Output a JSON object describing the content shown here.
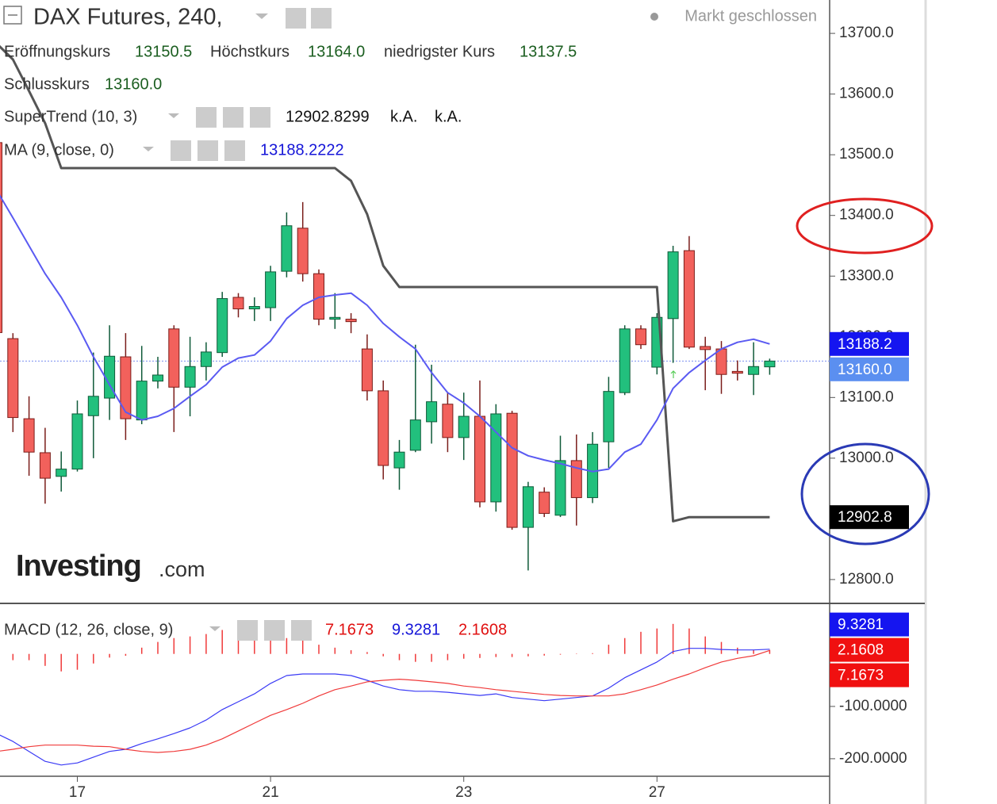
{
  "header": {
    "title": "DAX Futures, 240,",
    "status": "Markt geschlossen",
    "logo": "Investing",
    "logo_suffix": ".com",
    "ohlc": [
      {
        "label": "Eröffnungskurs",
        "value": "13150.5"
      },
      {
        "label": "Höchstkurs",
        "value": "13164.0"
      },
      {
        "label": "niedrigster Kurs",
        "value": "13137.5"
      },
      {
        "label": "Schlusskurs",
        "value": "13160.0"
      }
    ],
    "supertrend": {
      "name": "SuperTrend (10, 3)",
      "values": [
        "12902.8299",
        "k.A.",
        "k.A."
      ]
    },
    "ma": {
      "name": "MA (9, close, 0)",
      "value": "13188.2222"
    },
    "macd": {
      "name": "MACD (12, 26, close, 9)",
      "values": [
        "7.1673",
        "9.3281",
        "2.1608"
      ]
    }
  },
  "chart_data": [
    {
      "type": "candlestick",
      "categories": [
        null,
        null,
        null,
        null,
        null,
        "17",
        null,
        null,
        null,
        null,
        null,
        null,
        null,
        null,
        null,
        null,
        null,
        "21",
        null,
        null,
        null,
        null,
        null,
        null,
        null,
        null,
        null,
        null,
        null,
        "23",
        null,
        null,
        null,
        null,
        null,
        null,
        null,
        null,
        null,
        null,
        null,
        "27",
        null,
        null,
        null,
        null,
        null,
        null,
        null
      ],
      "open": [
        13520,
        13197,
        13065,
        13009,
        12970,
        12982,
        13070,
        13099,
        13167,
        13063,
        13127,
        13213,
        13117,
        13151,
        13174,
        13265,
        13246,
        13248,
        13308,
        13379,
        13304,
        13229,
        13229,
        13180,
        13111,
        12984,
        13013,
        13060,
        13089,
        13034,
        13069,
        12928,
        13074,
        12886,
        12944,
        12906,
        12996,
        12935,
        13027,
        13108,
        13213,
        13150,
        13230,
        13342,
        13184,
        13180,
        13143,
        13138,
        13150.5
      ],
      "high": [
        13600,
        13206,
        13102,
        13050,
        13011,
        13095,
        13174,
        13219,
        13206,
        13185,
        13167,
        13219,
        13200,
        13191,
        13274,
        13272,
        13265,
        13317,
        13405,
        13422,
        13311,
        13272,
        13239,
        13204,
        13128,
        13030,
        13187,
        13154,
        13108,
        13108,
        13128,
        13089,
        13078,
        12961,
        12952,
        13037,
        13039,
        13043,
        13134,
        13219,
        13219,
        13239,
        13350,
        13366,
        13200,
        13193,
        13161,
        13191,
        13164
      ],
      "low": [
        13190,
        13043,
        12971,
        12925,
        12945,
        12978,
        13000,
        13063,
        13030,
        13056,
        13115,
        13043,
        13069,
        13128,
        13167,
        13232,
        13226,
        13226,
        13298,
        13291,
        13219,
        13213,
        13206,
        13095,
        12965,
        12948,
        13010,
        13024,
        13010,
        12997,
        12919,
        12912,
        12882,
        12815,
        12903,
        12903,
        12889,
        12926,
        12984,
        13104,
        13180,
        13138,
        13157,
        13180,
        13112,
        13106,
        13128,
        13104,
        13137.5
      ],
      "close": [
        13207,
        13067,
        13010,
        12967,
        12982,
        13073,
        13102,
        13168,
        13065,
        13127,
        13137,
        13117,
        13151,
        13175,
        13263,
        13246,
        13250,
        13307,
        13383,
        13304,
        13229,
        13232,
        13225,
        13111,
        12988,
        13010,
        13063,
        13093,
        13034,
        13069,
        12928,
        13073,
        12886,
        12953,
        12909,
        12996,
        12935,
        13023,
        13110,
        13213,
        13187,
        13232,
        13340,
        13183,
        13179,
        13138,
        13140,
        13151,
        13160
      ],
      "up_color": "#22c07d",
      "down_color": "#f2615c",
      "close_tag": "13160.0",
      "close_tag_color": "#5b8ff0",
      "series": [
        {
          "name": "SuperTrend",
          "color": "#555555",
          "tag": "12902.8",
          "tag_color": "#000000",
          "values": [
            13683,
            13657,
            13605,
            13552,
            13478,
            13478,
            13478,
            13478,
            13478,
            13478,
            13478,
            13478,
            13478,
            13478,
            13478,
            13478,
            13478,
            13478,
            13478,
            13478,
            13478,
            13478,
            13457,
            13402,
            13317,
            13282,
            13282,
            13282,
            13282,
            13282,
            13282,
            13282,
            13282,
            13282,
            13282,
            13282,
            13282,
            13282,
            13282,
            13282,
            13282,
            13282,
            12896,
            12902.8299,
            12902.8299,
            12902.8299,
            12902.8299,
            12902.8299,
            12902.8299
          ]
        },
        {
          "name": "MA",
          "color": "#5a5af2",
          "tag": "13188.2",
          "tag_color": "#1515f0",
          "values": [
            13441,
            13396,
            13350,
            13304,
            13265,
            13219,
            13167,
            13121,
            13076,
            13063,
            13069,
            13082,
            13102,
            13121,
            13150,
            13165,
            13170,
            13193,
            13230,
            13252,
            13265,
            13269,
            13272,
            13252,
            13222,
            13200,
            13180,
            13141,
            13108,
            13091,
            13069,
            13043,
            13017,
            13004,
            12997,
            12991,
            12984,
            12978,
            12982,
            13010,
            13023,
            13063,
            13115,
            13141,
            13161,
            13180,
            13191,
            13196,
            13188.2222
          ]
        }
      ],
      "ylim": [
        12762,
        13755
      ],
      "yticks": [
        {
          "value": 12800,
          "label": "12800.0"
        },
        {
          "value": 13000,
          "label": "13000.0"
        },
        {
          "value": 13100,
          "label": "13100.0"
        },
        {
          "value": 13200,
          "label": "13200.0"
        },
        {
          "value": 13300,
          "label": "13300.0"
        },
        {
          "value": 13400,
          "label": "13400.0"
        },
        {
          "value": 13500,
          "label": "13500.0"
        },
        {
          "value": 13600,
          "label": "13600.0"
        },
        {
          "value": 13700,
          "label": "13700.0"
        }
      ]
    },
    {
      "type": "macd",
      "series": [
        {
          "name": "MACD",
          "color": "#3a3af5",
          "tag": "9.3281",
          "values": [
            -152,
            -167,
            -186,
            -205,
            -212,
            -208,
            -197,
            -186,
            -182,
            -171,
            -162,
            -152,
            -141,
            -126,
            -106,
            -91,
            -76,
            -56,
            -41,
            -38,
            -38,
            -38,
            -41,
            -50,
            -61,
            -68,
            -71,
            -71,
            -73,
            -76,
            -79,
            -76,
            -83,
            -86,
            -89,
            -86,
            -83,
            -80,
            -65,
            -45,
            -30,
            -15,
            5,
            11,
            11,
            9,
            8,
            8,
            9.3281
          ]
        },
        {
          "name": "Signal",
          "color": "#f03a3a",
          "tag": "7.1673",
          "values": [
            -186,
            -182,
            -177,
            -174,
            -174,
            -174,
            -176,
            -177,
            -182,
            -186,
            -188,
            -186,
            -182,
            -174,
            -162,
            -147,
            -132,
            -117,
            -106,
            -94,
            -80,
            -68,
            -61,
            -53,
            -50,
            -48,
            -50,
            -53,
            -56,
            -61,
            -64,
            -68,
            -71,
            -74,
            -77,
            -79,
            -80,
            -80,
            -80,
            -76,
            -68,
            -59,
            -48,
            -38,
            -26,
            -15,
            -8,
            -3,
            7.1673
          ]
        }
      ],
      "histogram": {
        "color": "#f03a3a",
        "tag": "2.1608",
        "values": [
          -1,
          -3.4,
          -3.4,
          -6.5,
          -9.5,
          -8.6,
          -5.2,
          -2,
          -1,
          3.4,
          6.5,
          8.6,
          9.5,
          10.8,
          13,
          13,
          12,
          10.8,
          8.6,
          7.7,
          5,
          3.4,
          2,
          1,
          -1.3,
          -3.4,
          -4.3,
          -4.3,
          -3.4,
          -2.6,
          -2.2,
          -1.7,
          -1.7,
          -1.3,
          -0.9,
          -0.4,
          0.2,
          0.4,
          5,
          8.6,
          12,
          13.8,
          16.3,
          13.8,
          9.5,
          6.5,
          3.4,
          2.2,
          2.1608
        ]
      },
      "hlim": [
        -66,
        27
      ],
      "ylim": [
        -232,
        95.5
      ],
      "yticks": [
        {
          "value": -100,
          "label": "-100.0000"
        },
        {
          "value": -200,
          "label": "-200.0000"
        }
      ]
    }
  ]
}
